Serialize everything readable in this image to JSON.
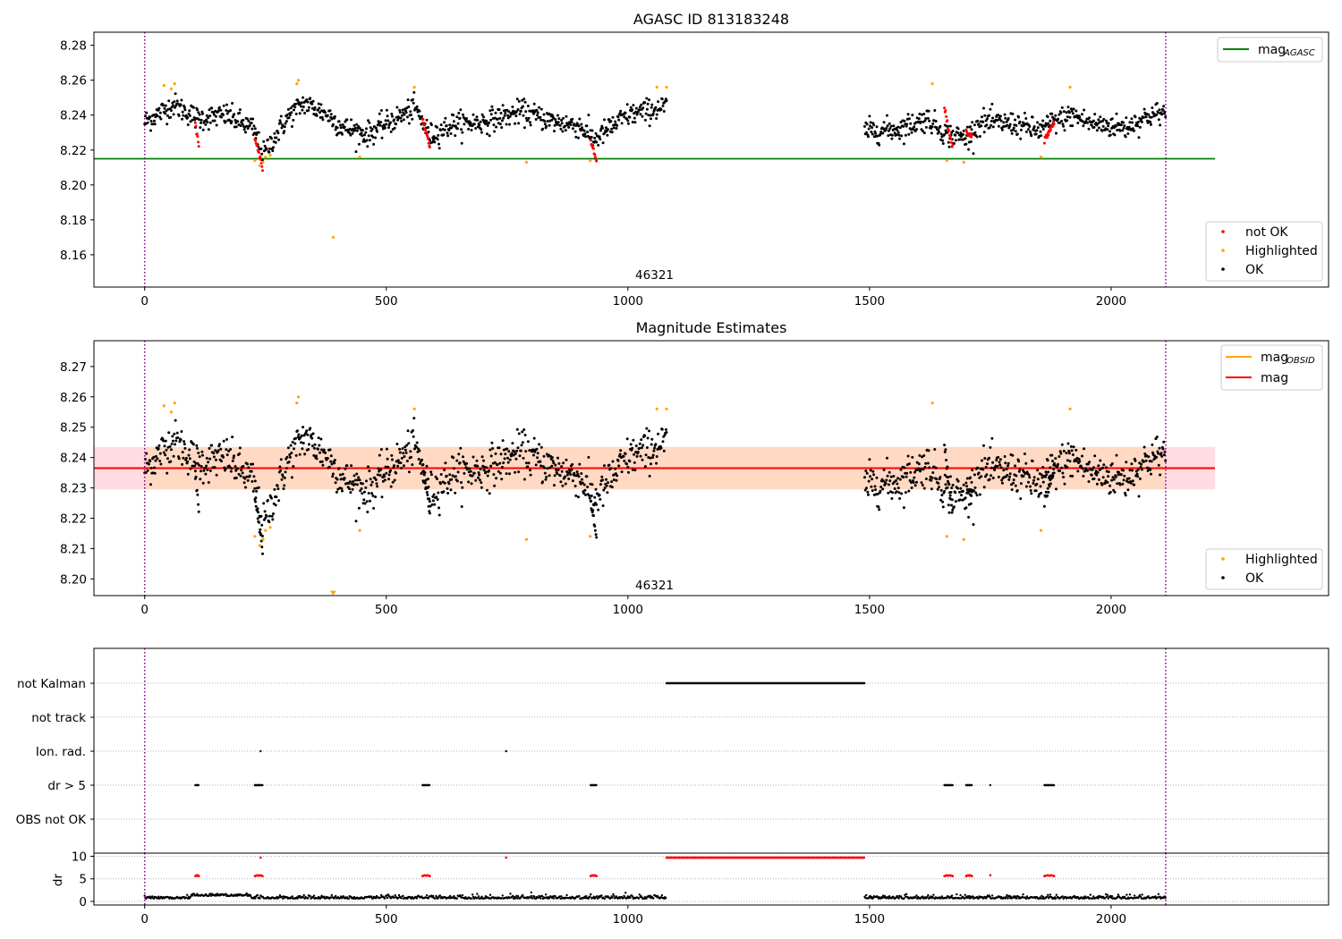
{
  "chart_data": [
    {
      "type": "scatter",
      "title": "AGASC ID 813183248",
      "xlim": [
        -105,
        2450
      ],
      "ylim": [
        8.1415,
        8.2875
      ],
      "xticks": [
        "0",
        "500",
        "1000",
        "1500",
        "2000"
      ],
      "xtick_values": [
        0,
        500,
        1000,
        1500,
        2000
      ],
      "yticks": [
        "8.16",
        "8.18",
        "8.20",
        "8.22",
        "8.24",
        "8.26",
        "8.28"
      ],
      "ytick_values": [
        8.16,
        8.18,
        8.2,
        8.22,
        8.24,
        8.26,
        8.28
      ],
      "obsid_label": "46321",
      "obsid_label_pos": [
        1055,
        8.146
      ],
      "vlines": [
        0,
        2113
      ],
      "mag_agasc": 8.215,
      "mag_agasc_xrange": [
        -105,
        2215
      ],
      "legend_top": [
        {
          "name": "mag",
          "sub": "AGASC",
          "color": "#008000"
        }
      ],
      "legend_bottom": [
        {
          "name": "not OK",
          "color": "#ff0000"
        },
        {
          "name": "Highlighted",
          "color": "#ffa500"
        },
        {
          "name": "OK",
          "color": "#000000"
        }
      ],
      "segments": [
        {
          "x": [
            0,
            1080
          ],
          "levels": [
            [
              0,
              8.236
            ],
            [
              60,
              8.246
            ],
            [
              110,
              8.238
            ],
            [
              170,
              8.24
            ],
            [
              225,
              8.232
            ],
            [
              245,
              8.217
            ],
            [
              265,
              8.226
            ],
            [
              300,
              8.24
            ],
            [
              330,
              8.247
            ],
            [
              380,
              8.24
            ],
            [
              410,
              8.233
            ],
            [
              460,
              8.229
            ],
            [
              520,
              8.238
            ],
            [
              560,
              8.244
            ],
            [
              590,
              8.228
            ],
            [
              640,
              8.235
            ],
            [
              700,
              8.236
            ],
            [
              780,
              8.242
            ],
            [
              850,
              8.236
            ],
            [
              900,
              8.234
            ],
            [
              930,
              8.226
            ],
            [
              960,
              8.232
            ],
            [
              1000,
              8.24
            ],
            [
              1080,
              8.245
            ]
          ],
          "noise": 0.0045
        },
        {
          "x": [
            1490,
            2113
          ],
          "levels": [
            [
              1490,
              8.231
            ],
            [
              1560,
              8.232
            ],
            [
              1620,
              8.238
            ],
            [
              1660,
              8.229
            ],
            [
              1700,
              8.227
            ],
            [
              1730,
              8.236
            ],
            [
              1800,
              8.235
            ],
            [
              1850,
              8.231
            ],
            [
              1880,
              8.236
            ],
            [
              1920,
              8.24
            ],
            [
              1960,
              8.235
            ],
            [
              2030,
              8.233
            ],
            [
              2080,
              8.24
            ],
            [
              2113,
              8.241
            ]
          ],
          "noise": 0.0045
        }
      ],
      "notok_runs": [
        {
          "x": [
            105,
            112
          ],
          "y": [
            8.236,
            8.222
          ]
        },
        {
          "x": [
            228,
            244
          ],
          "y": [
            8.226,
            8.21
          ]
        },
        {
          "x": [
            575,
            590
          ],
          "y": [
            8.238,
            8.222
          ]
        },
        {
          "x": [
            923,
            935
          ],
          "y": [
            8.225,
            8.215
          ]
        },
        {
          "x": [
            1655,
            1672
          ],
          "y": [
            8.244,
            8.221
          ]
        },
        {
          "x": [
            1700,
            1712
          ],
          "y": [
            8.231,
            8.228
          ]
        },
        {
          "x": [
            1862,
            1882
          ],
          "y": [
            8.226,
            8.236
          ]
        }
      ],
      "highlighted": [
        [
          40,
          8.257
        ],
        [
          55,
          8.255
        ],
        [
          62,
          8.258
        ],
        [
          228,
          8.214
        ],
        [
          238,
          8.211
        ],
        [
          245,
          8.213
        ],
        [
          250,
          8.216
        ],
        [
          260,
          8.217
        ],
        [
          315,
          8.258
        ],
        [
          318,
          8.26
        ],
        [
          390,
          8.17
        ],
        [
          445,
          8.216
        ],
        [
          558,
          8.256
        ],
        [
          790,
          8.213
        ],
        [
          922,
          8.214
        ],
        [
          1060,
          8.256
        ],
        [
          1080,
          8.256
        ],
        [
          1630,
          8.258
        ],
        [
          1660,
          8.214
        ],
        [
          1695,
          8.213
        ],
        [
          1855,
          8.216
        ],
        [
          1915,
          8.256
        ]
      ]
    },
    {
      "type": "scatter",
      "title": "Magnitude Estimates",
      "xlim": [
        -105,
        2450
      ],
      "ylim": [
        8.1945,
        8.2785
      ],
      "xticks": [
        "0",
        "500",
        "1000",
        "1500",
        "2000"
      ],
      "xtick_values": [
        0,
        500,
        1000,
        1500,
        2000
      ],
      "yticks": [
        "8.20",
        "8.21",
        "8.22",
        "8.23",
        "8.24",
        "8.25",
        "8.26",
        "8.27"
      ],
      "ytick_values": [
        8.2,
        8.21,
        8.22,
        8.23,
        8.24,
        8.25,
        8.26,
        8.27
      ],
      "obsid_label": "46321",
      "obsid_label_pos": [
        1055,
        8.1965
      ],
      "vlines": [
        0,
        2113
      ],
      "mag_obsid": 8.2365,
      "mag": 8.2365,
      "band_pink": [
        8.2295,
        8.2435
      ],
      "band_pink_xrange": [
        -105,
        2215
      ],
      "band_orange": [
        8.2295,
        8.2435
      ],
      "band_orange_xrange": [
        0,
        2113
      ],
      "legend_top": [
        {
          "name": "mag",
          "sub": "OBSID",
          "color": "#ffa500"
        },
        {
          "name": "mag",
          "sub": "",
          "color": "#ff0000"
        }
      ],
      "legend_bottom": [
        {
          "name": "Highlighted",
          "color": "#ffa500"
        },
        {
          "name": "OK",
          "color": "#000000"
        }
      ],
      "arrow_marker": [
        390,
        8.1955
      ]
    },
    {
      "type": "scatter",
      "categories": [
        "not Kalman",
        "not track",
        "Ion. rad.",
        "dr > 5",
        "OBS not OK"
      ],
      "xlim": [
        -105,
        2450
      ],
      "vlines": [
        0,
        2113
      ],
      "flags": {
        "not Kalman": [
          [
            1080,
            1490
          ]
        ],
        "not track": [],
        "Ion. rad.": [
          [
            240,
            241
          ],
          [
            748,
            749
          ]
        ],
        "dr > 5": [
          [
            105,
            112
          ],
          [
            228,
            244
          ],
          [
            575,
            590
          ],
          [
            923,
            935
          ],
          [
            1655,
            1672
          ],
          [
            1700,
            1712
          ],
          [
            1750,
            1751
          ],
          [
            1862,
            1882
          ]
        ],
        "OBS not OK": []
      }
    },
    {
      "type": "scatter",
      "ylabel": "dr",
      "xlim": [
        -105,
        2450
      ],
      "ylim": [
        -0.8,
        10.7
      ],
      "xticks": [
        "0",
        "500",
        "1000",
        "1500",
        "2000"
      ],
      "xtick_values": [
        0,
        500,
        1000,
        1500,
        2000
      ],
      "yticks": [
        "0",
        "5",
        "10"
      ],
      "ytick_values": [
        0,
        5,
        10
      ],
      "vlines": [
        0,
        2113
      ],
      "saturated_range": [
        1080,
        1490
      ],
      "saturated_value": 9.7
    }
  ],
  "colors": {
    "notok": "#ff0000",
    "highlighted": "#ffa500",
    "ok": "#000000",
    "agasc": "#008000",
    "vline": "#800080",
    "band_pink": "#ffdce3",
    "band_orange": "#ffd9c4",
    "grid": "#b0b0b0"
  }
}
